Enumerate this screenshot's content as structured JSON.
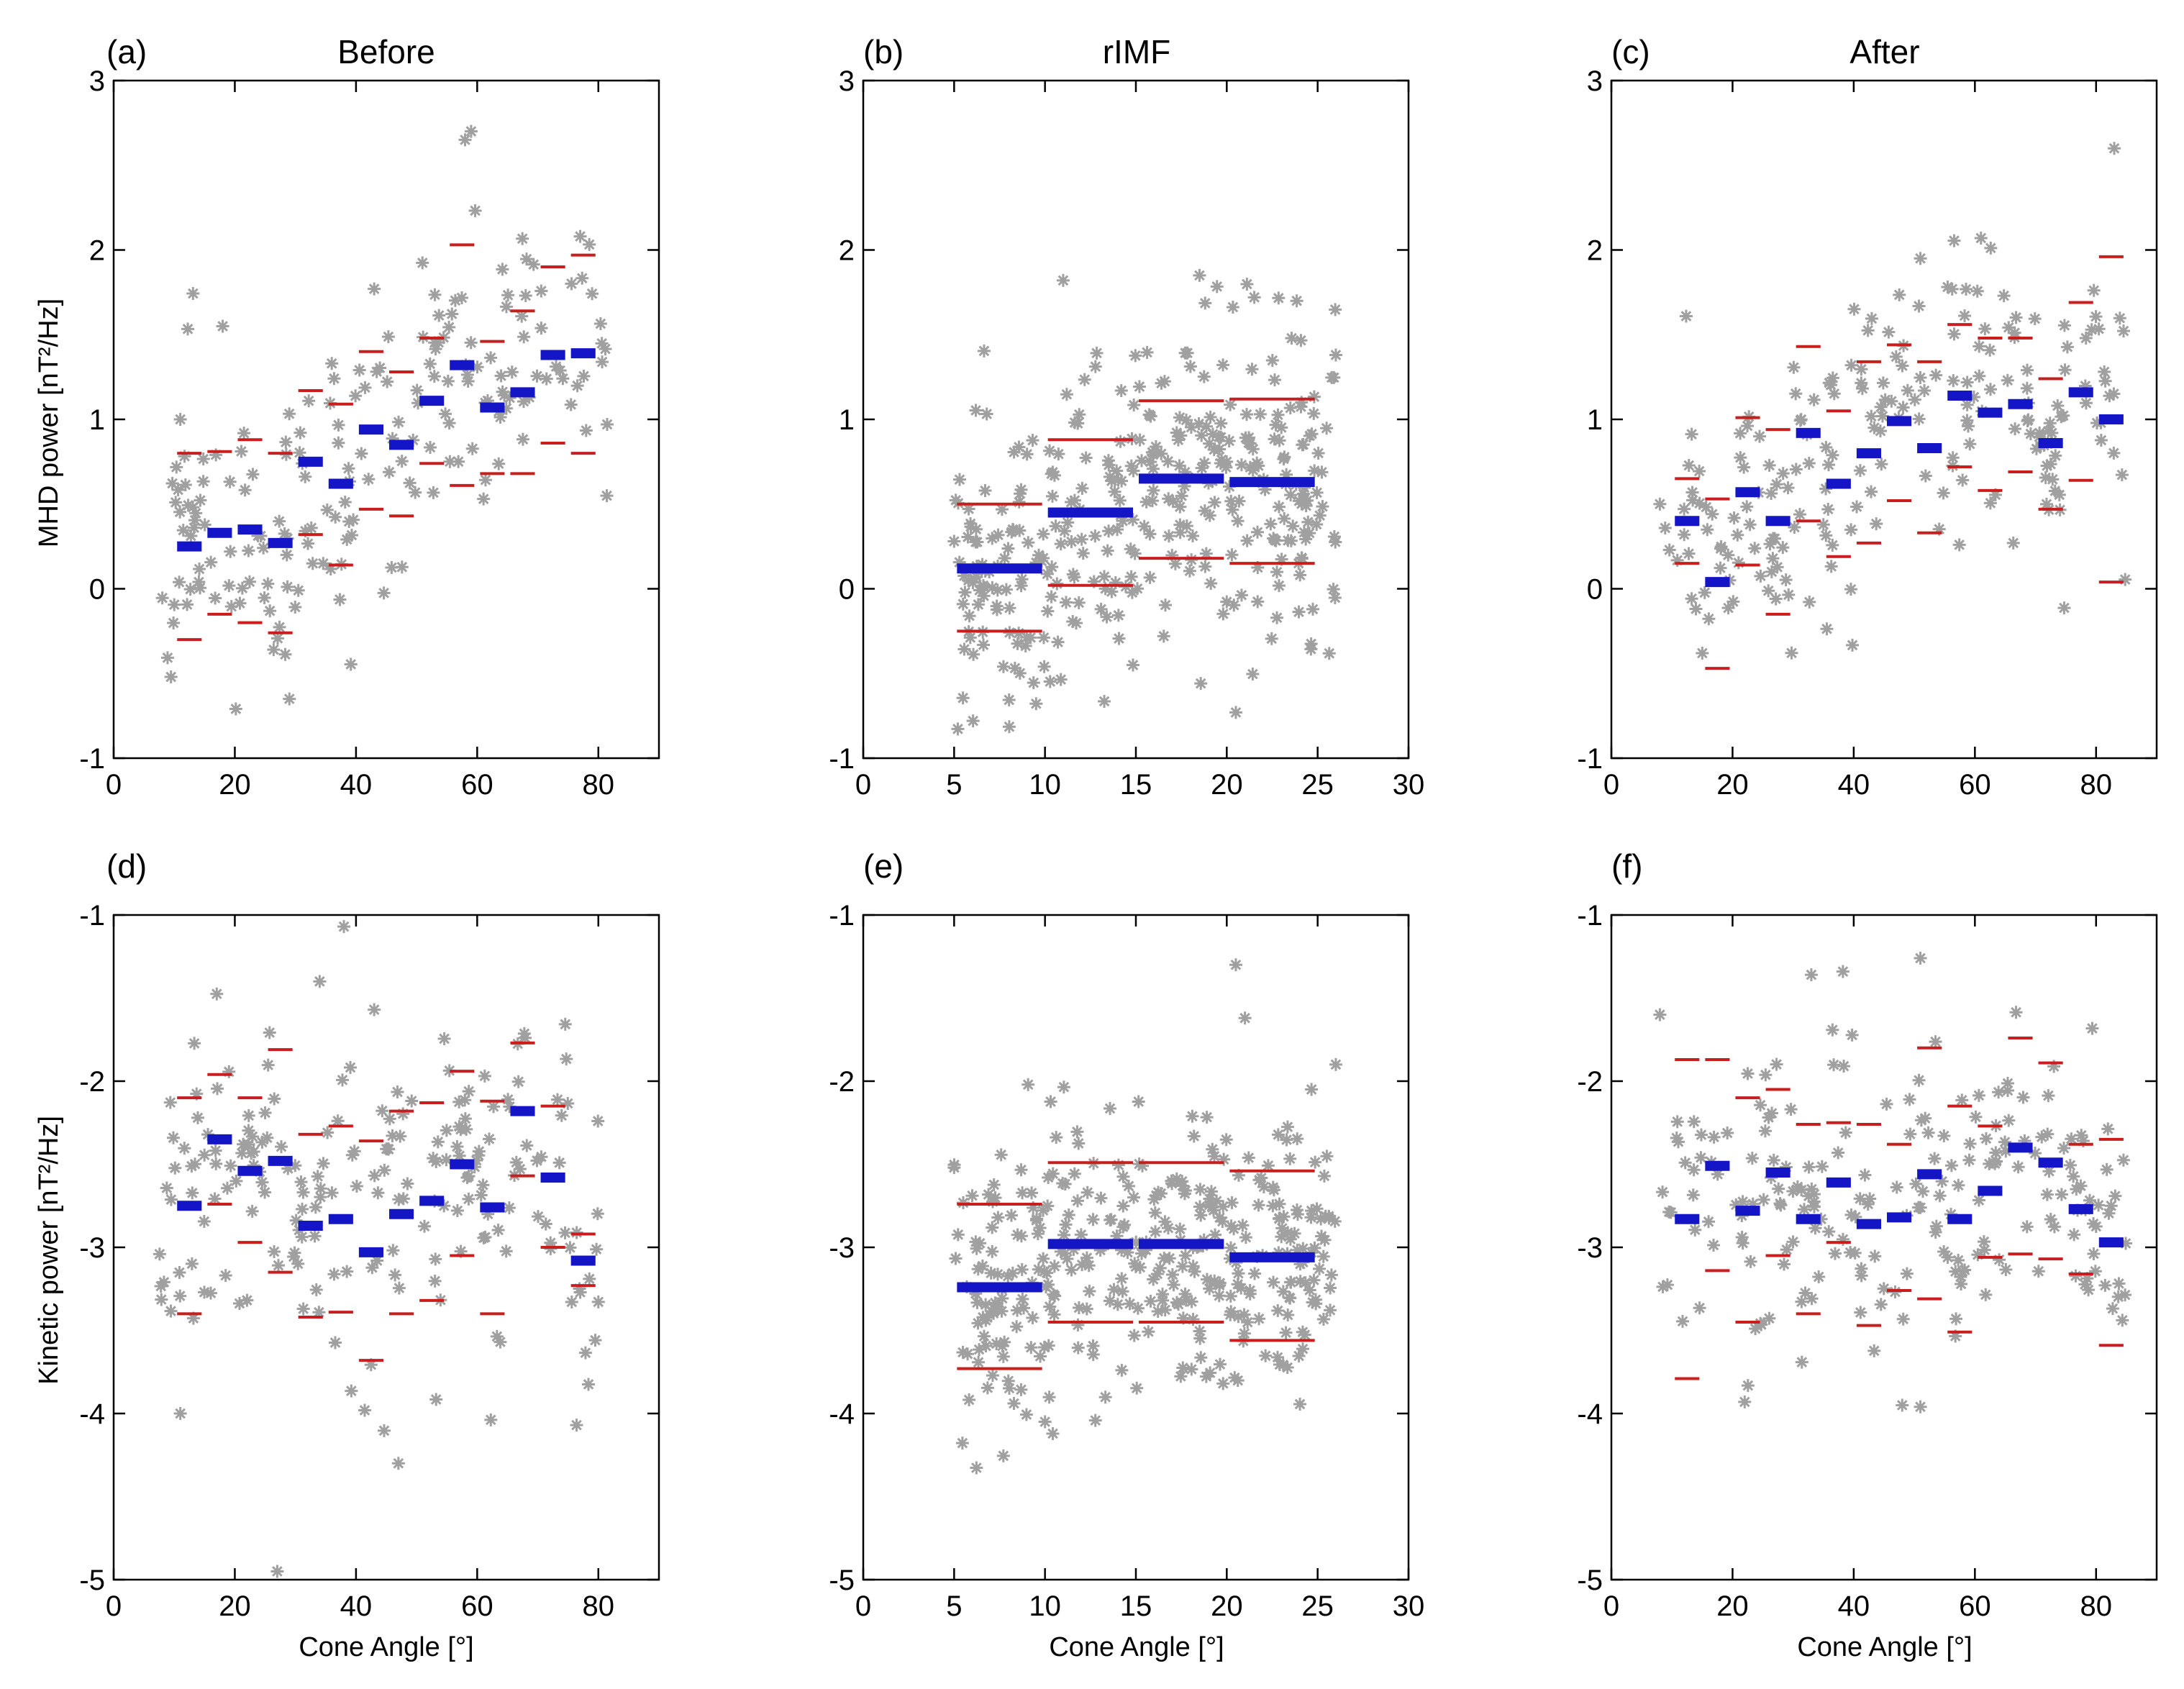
{
  "colors": {
    "mean": "#1515c8",
    "spread": "#c81e1e",
    "scatter": "#a0a0a0"
  },
  "axis_labels": {
    "mhd_ylabel": "MHD power [nT²/Hz]",
    "kin_ylabel": "Kinetic power [nT²/Hz]",
    "xlabel": "Cone Angle [°]"
  },
  "chart_data": [
    {
      "type": "scatter",
      "id": "a",
      "label": "(a)",
      "title": "Before",
      "xlim": [
        0,
        90
      ],
      "ylim": [
        -1,
        3
      ],
      "xticks": [
        0,
        20,
        40,
        60,
        80
      ],
      "yticks": [
        -1,
        0,
        1,
        2,
        3
      ],
      "ylabel": "MHD power [nT²/Hz]",
      "xlabel": "",
      "bins": [
        {
          "x0": 10,
          "x1": 15,
          "mean": 0.25,
          "upper": 0.8,
          "lower": -0.3
        },
        {
          "x0": 15,
          "x1": 20,
          "mean": 0.33,
          "upper": 0.81,
          "lower": -0.15
        },
        {
          "x0": 20,
          "x1": 25,
          "mean": 0.35,
          "upper": 0.88,
          "lower": -0.2
        },
        {
          "x0": 25,
          "x1": 30,
          "mean": 0.27,
          "upper": 0.8,
          "lower": -0.26
        },
        {
          "x0": 30,
          "x1": 35,
          "mean": 0.75,
          "upper": 1.17,
          "lower": 0.32
        },
        {
          "x0": 35,
          "x1": 40,
          "mean": 0.62,
          "upper": 1.09,
          "lower": 0.14
        },
        {
          "x0": 40,
          "x1": 45,
          "mean": 0.94,
          "upper": 1.4,
          "lower": 0.47
        },
        {
          "x0": 45,
          "x1": 50,
          "mean": 0.85,
          "upper": 1.28,
          "lower": 0.43
        },
        {
          "x0": 50,
          "x1": 55,
          "mean": 1.11,
          "upper": 1.48,
          "lower": 0.74
        },
        {
          "x0": 55,
          "x1": 60,
          "mean": 1.32,
          "upper": 2.03,
          "lower": 0.61
        },
        {
          "x0": 60,
          "x1": 65,
          "mean": 1.07,
          "upper": 1.46,
          "lower": 0.68
        },
        {
          "x0": 65,
          "x1": 70,
          "mean": 1.16,
          "upper": 1.64,
          "lower": 0.68
        },
        {
          "x0": 70,
          "x1": 75,
          "mean": 1.38,
          "upper": 1.9,
          "lower": 0.86
        },
        {
          "x0": 75,
          "x1": 80,
          "mean": 1.39,
          "upper": 1.97,
          "lower": 0.8
        }
      ],
      "scatter": {
        "xrange": [
          8,
          82
        ],
        "n": 190,
        "seed": 11,
        "spread": 0.42,
        "extra": [
          [
            58,
            2.65
          ],
          [
            59,
            2.7
          ],
          [
            77,
            2.08
          ],
          [
            29,
            -0.65
          ],
          [
            11,
            1.0
          ],
          [
            18,
            1.55
          ],
          [
            36,
            1.33
          ],
          [
            43,
            1.77
          ]
        ]
      }
    },
    {
      "type": "scatter",
      "id": "b",
      "label": "(b)",
      "title": "rIMF",
      "xlim": [
        0,
        30
      ],
      "ylim": [
        -1,
        3
      ],
      "xticks": [
        0,
        5,
        10,
        15,
        20,
        25,
        30
      ],
      "yticks": [
        -1,
        0,
        1,
        2,
        3
      ],
      "ylabel": "",
      "xlabel": "",
      "bins": [
        {
          "x0": 5,
          "x1": 10,
          "mean": 0.12,
          "upper": 0.5,
          "lower": -0.25
        },
        {
          "x0": 10,
          "x1": 15,
          "mean": 0.45,
          "upper": 0.88,
          "lower": 0.02
        },
        {
          "x0": 15,
          "x1": 20,
          "mean": 0.65,
          "upper": 1.11,
          "lower": 0.18
        },
        {
          "x0": 20,
          "x1": 25,
          "mean": 0.63,
          "upper": 1.12,
          "lower": 0.15
        }
      ],
      "scatter": {
        "xrange": [
          5,
          26
        ],
        "n": 360,
        "seed": 23,
        "spread": 0.45,
        "extra": [
          [
            11,
            1.82
          ],
          [
            18.5,
            1.85
          ],
          [
            20.5,
            -0.73
          ],
          [
            26,
            1.38
          ],
          [
            5,
            0.28
          ]
        ]
      }
    },
    {
      "type": "scatter",
      "id": "c",
      "label": "(c)",
      "title": "After",
      "xlim": [
        0,
        90
      ],
      "ylim": [
        -1,
        3
      ],
      "xticks": [
        0,
        20,
        40,
        60,
        80
      ],
      "yticks": [
        -1,
        0,
        1,
        2,
        3
      ],
      "ylabel": "",
      "xlabel": "",
      "bins": [
        {
          "x0": 10,
          "x1": 15,
          "mean": 0.4,
          "upper": 0.65,
          "lower": 0.15
        },
        {
          "x0": 15,
          "x1": 20,
          "mean": 0.04,
          "upper": 0.53,
          "lower": -0.47
        },
        {
          "x0": 20,
          "x1": 25,
          "mean": 0.57,
          "upper": 1.01,
          "lower": 0.14
        },
        {
          "x0": 25,
          "x1": 30,
          "mean": 0.4,
          "upper": 0.94,
          "lower": -0.15
        },
        {
          "x0": 30,
          "x1": 35,
          "mean": 0.92,
          "upper": 1.43,
          "lower": 0.4
        },
        {
          "x0": 35,
          "x1": 40,
          "mean": 0.62,
          "upper": 1.05,
          "lower": 0.19
        },
        {
          "x0": 40,
          "x1": 45,
          "mean": 0.8,
          "upper": 1.34,
          "lower": 0.27
        },
        {
          "x0": 45,
          "x1": 50,
          "mean": 0.99,
          "upper": 1.44,
          "lower": 0.52
        },
        {
          "x0": 50,
          "x1": 55,
          "mean": 0.83,
          "upper": 1.34,
          "lower": 0.33
        },
        {
          "x0": 55,
          "x1": 60,
          "mean": 1.14,
          "upper": 1.56,
          "lower": 0.72
        },
        {
          "x0": 60,
          "x1": 65,
          "mean": 1.04,
          "upper": 1.48,
          "lower": 0.58
        },
        {
          "x0": 65,
          "x1": 70,
          "mean": 1.09,
          "upper": 1.48,
          "lower": 0.69
        },
        {
          "x0": 70,
          "x1": 75,
          "mean": 0.86,
          "upper": 1.24,
          "lower": 0.47
        },
        {
          "x0": 75,
          "x1": 80,
          "mean": 1.16,
          "upper": 1.69,
          "lower": 0.64
        },
        {
          "x0": 80,
          "x1": 85,
          "mean": 1.0,
          "upper": 1.96,
          "lower": 0.04
        }
      ],
      "scatter": {
        "xrange": [
          8,
          85
        ],
        "n": 210,
        "seed": 37,
        "spread": 0.4,
        "extra": [
          [
            83,
            2.6
          ],
          [
            61,
            2.07
          ],
          [
            51,
            1.95
          ],
          [
            15,
            -0.38
          ],
          [
            8,
            0.5
          ]
        ]
      }
    },
    {
      "type": "scatter",
      "id": "d",
      "label": "(d)",
      "title": "",
      "xlim": [
        0,
        90
      ],
      "ylim": [
        -5,
        -1
      ],
      "xticks": [
        0,
        20,
        40,
        60,
        80
      ],
      "yticks": [
        -5,
        -4,
        -3,
        -2,
        -1
      ],
      "ylabel": "Kinetic power [nT²/Hz]",
      "xlabel": "Cone Angle [°]",
      "bins": [
        {
          "x0": 10,
          "x1": 15,
          "mean": -2.75,
          "upper": -2.1,
          "lower": -3.4
        },
        {
          "x0": 15,
          "x1": 20,
          "mean": -2.35,
          "upper": -1.96,
          "lower": -2.74
        },
        {
          "x0": 20,
          "x1": 25,
          "mean": -2.54,
          "upper": -2.1,
          "lower": -2.97
        },
        {
          "x0": 25,
          "x1": 30,
          "mean": -2.48,
          "upper": -1.81,
          "lower": -3.15
        },
        {
          "x0": 30,
          "x1": 35,
          "mean": -2.87,
          "upper": -2.32,
          "lower": -3.42
        },
        {
          "x0": 35,
          "x1": 40,
          "mean": -2.83,
          "upper": -2.27,
          "lower": -3.39
        },
        {
          "x0": 40,
          "x1": 45,
          "mean": -3.03,
          "upper": -2.36,
          "lower": -3.68
        },
        {
          "x0": 45,
          "x1": 50,
          "mean": -2.8,
          "upper": -2.18,
          "lower": -3.4
        },
        {
          "x0": 50,
          "x1": 55,
          "mean": -2.72,
          "upper": -2.13,
          "lower": -3.32
        },
        {
          "x0": 55,
          "x1": 60,
          "mean": -2.5,
          "upper": -1.94,
          "lower": -3.05
        },
        {
          "x0": 60,
          "x1": 65,
          "mean": -2.76,
          "upper": -2.12,
          "lower": -3.4
        },
        {
          "x0": 65,
          "x1": 70,
          "mean": -2.18,
          "upper": -1.77,
          "lower": -2.57
        },
        {
          "x0": 70,
          "x1": 75,
          "mean": -2.58,
          "upper": -2.15,
          "lower": -3.0
        },
        {
          "x0": 75,
          "x1": 80,
          "mean": -3.08,
          "upper": -2.92,
          "lower": -3.23
        }
      ],
      "scatter": {
        "xrange": [
          7,
          80
        ],
        "n": 200,
        "seed": 53,
        "spread": 0.45,
        "extra": [
          [
            38,
            -1.07
          ],
          [
            34,
            -1.4
          ],
          [
            27,
            -4.95
          ],
          [
            47,
            -4.3
          ],
          [
            11,
            -4.0
          ],
          [
            43,
            -1.57
          ]
        ]
      }
    },
    {
      "type": "scatter",
      "id": "e",
      "label": "(e)",
      "title": "",
      "xlim": [
        0,
        30
      ],
      "ylim": [
        -5,
        -1
      ],
      "xticks": [
        0,
        5,
        10,
        15,
        20,
        25,
        30
      ],
      "yticks": [
        -5,
        -4,
        -3,
        -2,
        -1
      ],
      "ylabel": "",
      "xlabel": "Cone Angle [°]",
      "bins": [
        {
          "x0": 5,
          "x1": 10,
          "mean": -3.24,
          "upper": -2.74,
          "lower": -3.73
        },
        {
          "x0": 10,
          "x1": 15,
          "mean": -2.98,
          "upper": -2.49,
          "lower": -3.45
        },
        {
          "x0": 15,
          "x1": 20,
          "mean": -2.98,
          "upper": -2.49,
          "lower": -3.45
        },
        {
          "x0": 20,
          "x1": 25,
          "mean": -3.06,
          "upper": -2.54,
          "lower": -3.56
        }
      ],
      "scatter": {
        "xrange": [
          5,
          26
        ],
        "n": 360,
        "seed": 71,
        "spread": 0.42,
        "extra": [
          [
            20.5,
            -1.3
          ],
          [
            21,
            -1.62
          ],
          [
            10,
            -4.05
          ],
          [
            26,
            -1.9
          ],
          [
            5,
            -2.52
          ]
        ]
      }
    },
    {
      "type": "scatter",
      "id": "f",
      "label": "(f)",
      "title": "",
      "xlim": [
        0,
        90
      ],
      "ylim": [
        -5,
        -1
      ],
      "xticks": [
        0,
        20,
        40,
        60,
        80
      ],
      "yticks": [
        -5,
        -4,
        -3,
        -2,
        -1
      ],
      "ylabel": "",
      "xlabel": "Cone Angle [°]",
      "bins": [
        {
          "x0": 10,
          "x1": 15,
          "mean": -2.83,
          "upper": -1.87,
          "lower": -3.79
        },
        {
          "x0": 15,
          "x1": 20,
          "mean": -2.51,
          "upper": -1.87,
          "lower": -3.14
        },
        {
          "x0": 20,
          "x1": 25,
          "mean": -2.78,
          "upper": -2.1,
          "lower": -3.45
        },
        {
          "x0": 25,
          "x1": 30,
          "mean": -2.55,
          "upper": -2.05,
          "lower": -3.05
        },
        {
          "x0": 30,
          "x1": 35,
          "mean": -2.83,
          "upper": -2.26,
          "lower": -3.4
        },
        {
          "x0": 35,
          "x1": 40,
          "mean": -2.61,
          "upper": -2.25,
          "lower": -2.97
        },
        {
          "x0": 40,
          "x1": 45,
          "mean": -2.86,
          "upper": -2.26,
          "lower": -3.47
        },
        {
          "x0": 45,
          "x1": 50,
          "mean": -2.82,
          "upper": -2.38,
          "lower": -3.26
        },
        {
          "x0": 50,
          "x1": 55,
          "mean": -2.56,
          "upper": -1.8,
          "lower": -3.31
        },
        {
          "x0": 55,
          "x1": 60,
          "mean": -2.83,
          "upper": -2.15,
          "lower": -3.51
        },
        {
          "x0": 60,
          "x1": 65,
          "mean": -2.66,
          "upper": -2.27,
          "lower": -3.06
        },
        {
          "x0": 65,
          "x1": 70,
          "mean": -2.4,
          "upper": -1.74,
          "lower": -3.04
        },
        {
          "x0": 70,
          "x1": 75,
          "mean": -2.49,
          "upper": -1.89,
          "lower": -3.07
        },
        {
          "x0": 75,
          "x1": 80,
          "mean": -2.77,
          "upper": -2.38,
          "lower": -3.16
        },
        {
          "x0": 80,
          "x1": 85,
          "mean": -2.97,
          "upper": -2.35,
          "lower": -3.59
        }
      ],
      "scatter": {
        "xrange": [
          8,
          85
        ],
        "n": 210,
        "seed": 89,
        "spread": 0.42,
        "extra": [
          [
            51,
            -1.26
          ],
          [
            33,
            -1.36
          ],
          [
            8,
            -1.6
          ],
          [
            48,
            -3.95
          ],
          [
            51,
            -3.96
          ],
          [
            22,
            -3.93
          ]
        ]
      }
    }
  ]
}
